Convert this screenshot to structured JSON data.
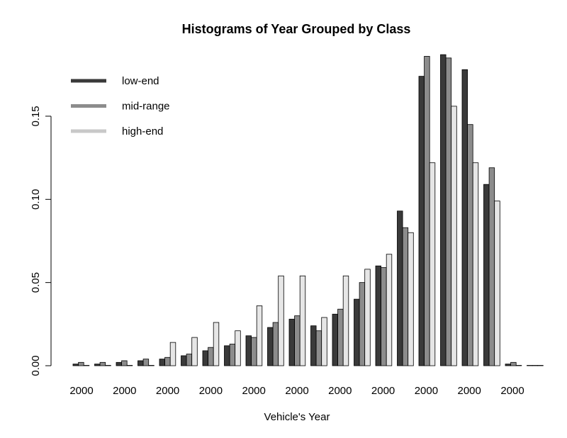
{
  "chart_data": {
    "type": "bar",
    "title": "Histograms of Year Grouped by Class",
    "xlabel": "Vehicle's Year",
    "ylabel": "",
    "ylim": [
      0,
      0.19
    ],
    "yticks": [
      "0.00",
      "0.05",
      "0.10",
      "0.15"
    ],
    "categories": [
      "2000",
      "2000",
      "2000",
      "2000",
      "2000",
      "2000",
      "2000",
      "2000",
      "2000",
      "2000",
      "2000",
      "2000",
      "2000",
      "2000",
      "2000",
      "2000",
      "2000",
      "2000",
      "2000",
      "2000",
      "2000",
      "2000"
    ],
    "x_tick_labels": [
      "2000",
      "2000",
      "2000",
      "2000",
      "2000",
      "2000",
      "2000",
      "2000",
      "2000",
      "2000",
      "2000"
    ],
    "legend_position": "top-left",
    "grid": false,
    "series": [
      {
        "name": "low-end",
        "color": "#3a3a3a",
        "values": [
          0.001,
          0.001,
          0.002,
          0.003,
          0.004,
          0.006,
          0.009,
          0.012,
          0.018,
          0.023,
          0.028,
          0.024,
          0.031,
          0.04,
          0.06,
          0.093,
          0.174,
          0.187,
          0.178,
          0.109,
          0.001,
          0.0
        ]
      },
      {
        "name": "mid-range",
        "color": "#8c8c8c",
        "values": [
          0.002,
          0.002,
          0.003,
          0.004,
          0.005,
          0.007,
          0.011,
          0.013,
          0.017,
          0.026,
          0.03,
          0.021,
          0.034,
          0.05,
          0.059,
          0.083,
          0.186,
          0.185,
          0.145,
          0.119,
          0.002,
          0.0
        ]
      },
      {
        "name": "high-end",
        "color": "#e6e6e6",
        "values": [
          0.0,
          0.0,
          0.0,
          0.0,
          0.014,
          0.017,
          0.026,
          0.021,
          0.036,
          0.054,
          0.054,
          0.029,
          0.054,
          0.058,
          0.067,
          0.08,
          0.122,
          0.156,
          0.122,
          0.099,
          0.0,
          0.0
        ]
      }
    ]
  }
}
